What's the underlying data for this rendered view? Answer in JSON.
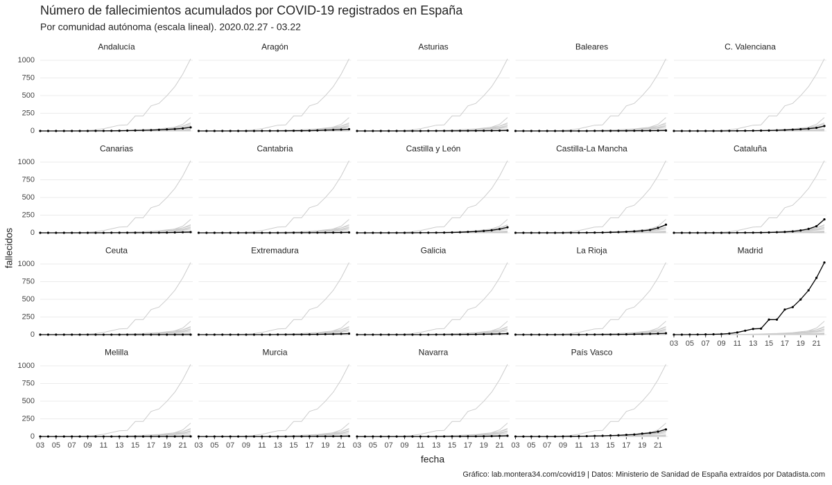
{
  "chart_data": {
    "type": "line",
    "title": "Número de fallecimientos acumulados por COVID-19 registrados en España",
    "subtitle": "Por comunidad autónoma (escala lineal). 2020.02.27 - 03.22",
    "x_label": "fecha",
    "y_label": "fallecidos",
    "caption": "Gráfico: lab.montera34.com/covid19 | Datos: Ministerio de Sanidad de España extraídos por Datadista.com",
    "x": [
      3,
      4,
      5,
      6,
      7,
      8,
      9,
      10,
      11,
      12,
      13,
      14,
      15,
      16,
      17,
      18,
      19,
      20,
      21,
      22
    ],
    "xlim": [
      3,
      22
    ],
    "xticks": [
      {
        "value": 3,
        "label": "03"
      },
      {
        "value": 5,
        "label": "05"
      },
      {
        "value": 7,
        "label": "07"
      },
      {
        "value": 9,
        "label": "09"
      },
      11,
      13,
      15,
      17,
      19,
      21
    ],
    "ylim": [
      0,
      1025
    ],
    "yticks": [
      0,
      250,
      500,
      750,
      1000
    ],
    "grid": true,
    "color": "#000000",
    "background_color": "#cccccc",
    "series": [
      {
        "name": "Andalucía",
        "values": [
          0,
          0,
          0,
          0,
          0,
          0,
          0,
          1,
          1,
          2,
          3,
          5,
          7,
          9,
          11,
          16,
          22,
          27,
          36,
          50
        ]
      },
      {
        "name": "Aragón",
        "values": [
          0,
          0,
          0,
          0,
          0,
          0,
          0,
          0,
          1,
          1,
          1,
          2,
          3,
          3,
          4,
          7,
          11,
          15,
          19,
          25
        ]
      },
      {
        "name": "Asturias",
        "values": [
          0,
          0,
          0,
          0,
          0,
          0,
          0,
          0,
          0,
          1,
          1,
          1,
          1,
          2,
          2,
          3,
          3,
          4,
          5,
          6
        ]
      },
      {
        "name": "Baleares",
        "values": [
          0,
          0,
          0,
          0,
          0,
          0,
          0,
          0,
          0,
          0,
          1,
          1,
          1,
          2,
          2,
          3,
          3,
          4,
          5,
          6
        ]
      },
      {
        "name": "C. Valenciana",
        "values": [
          0,
          0,
          0,
          0,
          0,
          0,
          0,
          1,
          2,
          3,
          4,
          5,
          6,
          9,
          13,
          19,
          25,
          32,
          44,
          70
        ]
      },
      {
        "name": "Canarias",
        "values": [
          0,
          0,
          0,
          0,
          0,
          0,
          0,
          0,
          0,
          1,
          1,
          1,
          1,
          1,
          2,
          2,
          3,
          5,
          8,
          10
        ]
      },
      {
        "name": "Cantabria",
        "values": [
          0,
          0,
          0,
          0,
          0,
          0,
          0,
          0,
          0,
          0,
          0,
          0,
          1,
          1,
          1,
          2,
          2,
          3,
          4,
          5
        ]
      },
      {
        "name": "Castilla y León",
        "values": [
          0,
          0,
          0,
          0,
          0,
          0,
          0,
          0,
          1,
          1,
          2,
          3,
          5,
          8,
          13,
          19,
          26,
          36,
          53,
          78
        ]
      },
      {
        "name": "Castilla-La Mancha",
        "values": [
          0,
          0,
          0,
          0,
          0,
          0,
          0,
          1,
          1,
          2,
          3,
          4,
          7,
          10,
          15,
          21,
          28,
          40,
          70,
          115
        ]
      },
      {
        "name": "Cataluña",
        "values": [
          0,
          0,
          0,
          0,
          0,
          0,
          0,
          0,
          1,
          2,
          2,
          3,
          5,
          8,
          12,
          20,
          33,
          55,
          93,
          190
        ]
      },
      {
        "name": "Ceuta",
        "values": [
          0,
          0,
          0,
          0,
          0,
          0,
          0,
          0,
          0,
          0,
          0,
          0,
          0,
          0,
          0,
          0,
          0,
          0,
          0,
          0
        ]
      },
      {
        "name": "Extremadura",
        "values": [
          0,
          0,
          0,
          0,
          0,
          0,
          0,
          0,
          0,
          0,
          1,
          1,
          2,
          2,
          3,
          4,
          6,
          8,
          11,
          15
        ]
      },
      {
        "name": "Galicia",
        "values": [
          0,
          0,
          0,
          0,
          0,
          0,
          0,
          0,
          0,
          0,
          1,
          1,
          1,
          2,
          3,
          4,
          6,
          8,
          11,
          15
        ]
      },
      {
        "name": "La Rioja",
        "values": [
          0,
          0,
          0,
          0,
          0,
          0,
          0,
          0,
          0,
          1,
          1,
          2,
          2,
          3,
          4,
          6,
          8,
          11,
          15,
          20
        ]
      },
      {
        "name": "Madrid",
        "values": [
          0,
          0,
          1,
          2,
          4,
          5,
          8,
          16,
          31,
          56,
          81,
          86,
          213,
          213,
          355,
          390,
          498,
          628,
          804,
          1021
        ]
      },
      {
        "name": "Melilla",
        "values": [
          0,
          0,
          0,
          0,
          0,
          0,
          0,
          0,
          0,
          0,
          0,
          0,
          0,
          0,
          0,
          0,
          0,
          0,
          1,
          1
        ]
      },
      {
        "name": "Murcia",
        "values": [
          0,
          0,
          0,
          0,
          0,
          0,
          0,
          0,
          0,
          0,
          0,
          0,
          1,
          1,
          1,
          2,
          2,
          3,
          4,
          5
        ]
      },
      {
        "name": "Navarra",
        "values": [
          0,
          0,
          0,
          0,
          0,
          0,
          0,
          0,
          0,
          0,
          0,
          1,
          1,
          1,
          2,
          2,
          3,
          5,
          7,
          10
        ]
      },
      {
        "name": "País Vasco",
        "values": [
          0,
          0,
          0,
          0,
          0,
          0,
          1,
          2,
          4,
          5,
          8,
          10,
          14,
          17,
          23,
          28,
          41,
          51,
          69,
          100
        ]
      }
    ]
  }
}
